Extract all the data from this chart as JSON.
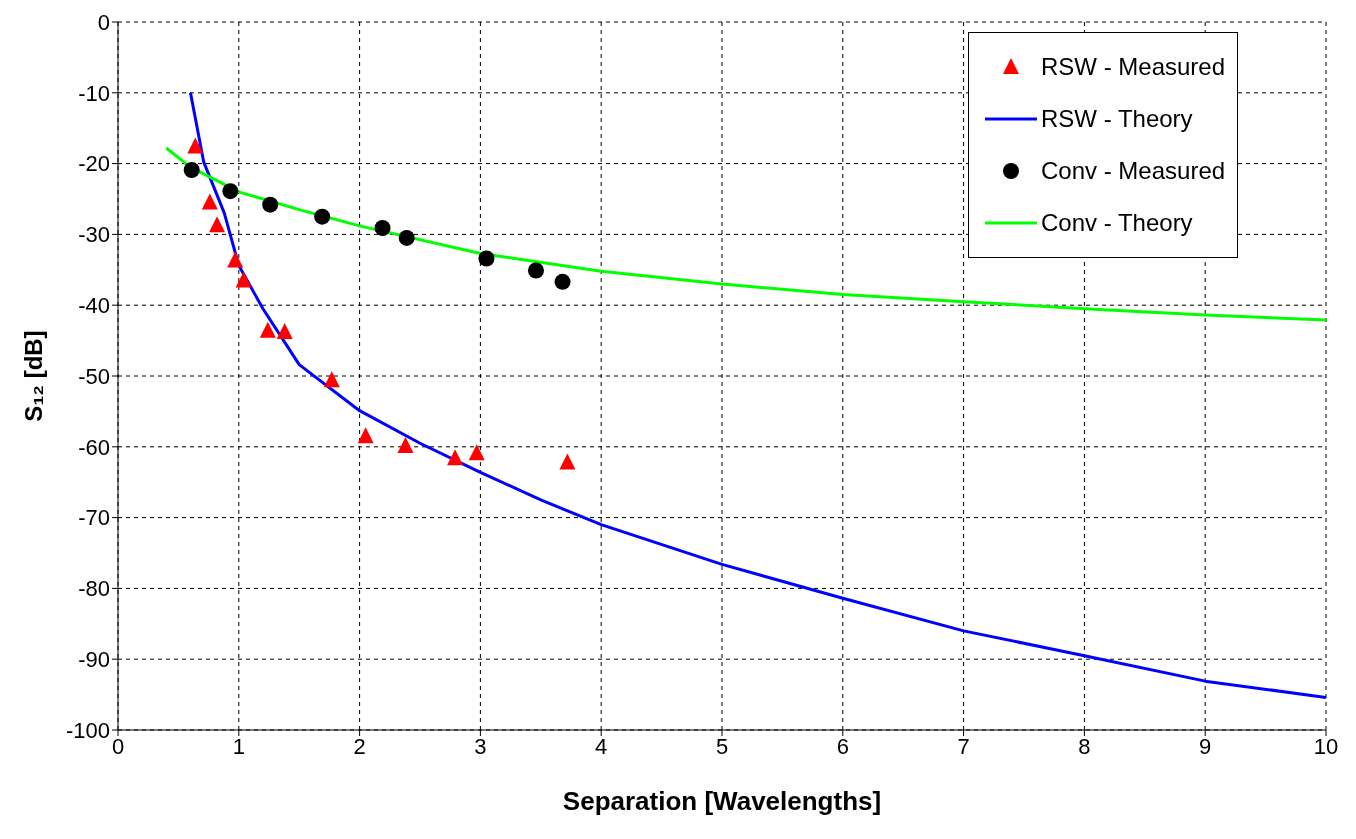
{
  "chart_data": {
    "type": "scatter",
    "xlabel": "Separation [Wavelengths]",
    "ylabel": "S₁₂ [dB]",
    "xlim": [
      0,
      10
    ],
    "xticks": [
      0,
      1,
      2,
      3,
      4,
      5,
      6,
      7,
      8,
      9,
      10
    ],
    "ylim": [
      -100,
      0
    ],
    "yticks": [
      -100,
      -90,
      -80,
      -70,
      -60,
      -50,
      -40,
      -30,
      -20,
      -10,
      0
    ],
    "grid": true,
    "legend": "top right",
    "series": [
      {
        "name": "RSW - Measured",
        "marker": "triangle",
        "color": "#ff0000",
        "x": [
          0.64,
          0.76,
          0.82,
          0.97,
          1.04,
          1.24,
          1.38,
          1.77,
          2.05,
          2.38,
          2.79,
          2.97,
          3.72
        ],
        "values": [
          -17.6,
          -25.5,
          -28.7,
          -33.7,
          -36.5,
          -43.6,
          -43.8,
          -50.6,
          -58.5,
          -59.9,
          -61.6,
          -60.9,
          -62.2
        ]
      },
      {
        "name": "RSW - Theory",
        "type": "line",
        "marker": "none",
        "color": "#0000ff",
        "x": [
          0.6,
          0.71,
          0.88,
          1,
          1.2,
          1.5,
          2,
          2.5,
          3,
          3.5,
          4,
          5,
          6,
          7,
          8,
          9,
          10
        ],
        "values": [
          -10,
          -19.8,
          -27,
          -34.4,
          -40.5,
          -48.4,
          -54.9,
          -59.5,
          -63.6,
          -67.5,
          -71,
          -76.6,
          -81.4,
          -86,
          -89.5,
          -93.1,
          -95.4
        ]
      },
      {
        "name": "Conv - Measured",
        "marker": "circle",
        "color": "#000000",
        "x": [
          0.61,
          0.93,
          1.26,
          1.69,
          2.19,
          2.39,
          3.05,
          3.46,
          3.68
        ],
        "values": [
          -20.9,
          -23.9,
          -25.8,
          -27.5,
          -29.1,
          -30.5,
          -33.4,
          -35.1,
          -36.7
        ]
      },
      {
        "name": "Conv - Theory",
        "type": "line",
        "marker": "none",
        "color": "#00ff00",
        "x": [
          0.4,
          0.6,
          1,
          1.5,
          2,
          3,
          4,
          5,
          6,
          7,
          8,
          9,
          10
        ],
        "values": [
          -17.8,
          -20.5,
          -24,
          -26.5,
          -28.8,
          -32.7,
          -35.2,
          -37,
          -38.5,
          -39.5,
          -40.5,
          -41.4,
          -42.1
        ]
      }
    ]
  }
}
